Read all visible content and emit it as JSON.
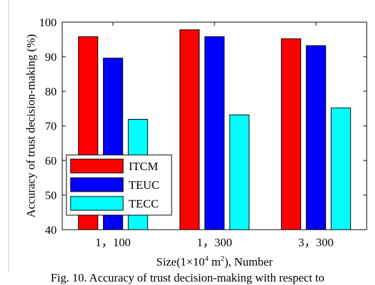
{
  "caption": "Fig. 10. Accuracy of trust decision-making with respect to",
  "chart_data": {
    "type": "bar",
    "categories": [
      "1，100",
      "1，300",
      "3，300"
    ],
    "series": [
      {
        "name": "ITCM",
        "color": "#ff0000",
        "values": [
          95.8,
          97.8,
          95.2
        ]
      },
      {
        "name": "TEUC",
        "color": "#0000ff",
        "values": [
          89.6,
          95.8,
          93.2
        ]
      },
      {
        "name": "TECC",
        "color": "#00ffff",
        "values": [
          71.9,
          73.2,
          75.2
        ]
      }
    ],
    "xlabel_main": "Size(1×10",
    "xlabel_sup1": "4",
    "xlabel_mid": " m",
    "xlabel_sup2": "2",
    "xlabel_end": "), Number",
    "ylabel": "Accuracy of trust decision-making (%)",
    "ylim": [
      40,
      100
    ],
    "yticks": [
      40,
      50,
      60,
      70,
      80,
      90,
      100
    ],
    "legend_position": "bottom-left",
    "grid": false
  }
}
